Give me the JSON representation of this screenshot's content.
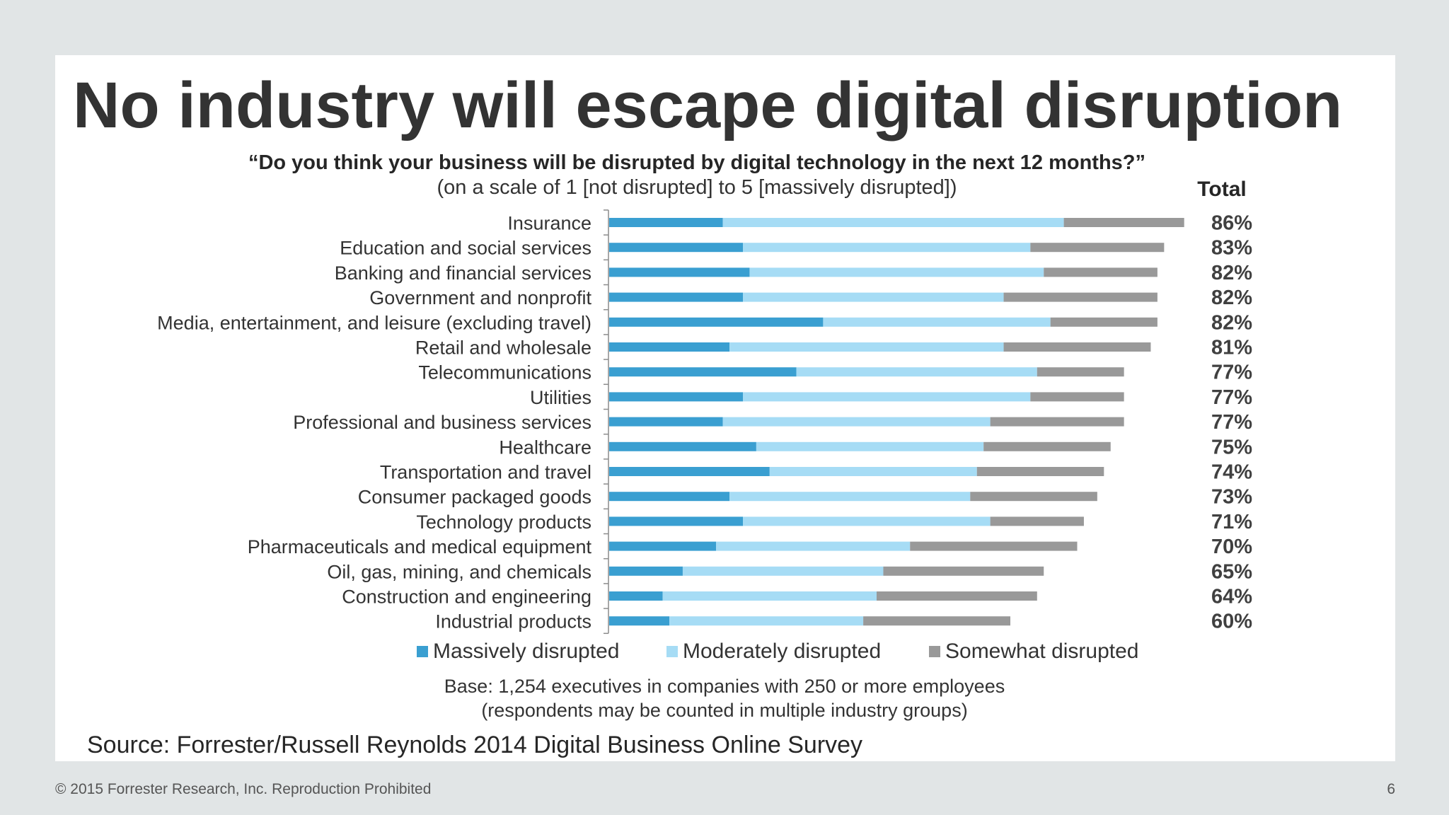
{
  "slide": {
    "title": "No industry will escape digital disruption",
    "question": "“Do you think your business will be disrupted by digital technology in the next 12 months?”",
    "scale_note": "(on a scale of 1 [not disrupted] to 5 [massively disrupted])",
    "base_note": "Base: 1,254 executives in companies with 250 or more employees",
    "base_note2": "(respondents may be counted in multiple industry groups)",
    "source": "Source: Forrester/Russell Reynolds 2014 Digital Business Online Survey",
    "copyright": "© 2015 Forrester Research, Inc. Reproduction Prohibited",
    "page_number": "6"
  },
  "chart_data": {
    "type": "bar",
    "orientation": "horizontal",
    "stacked": true,
    "title": "",
    "total_header": "Total",
    "categories": [
      "Insurance",
      "Education and social services",
      "Banking and financial services",
      "Government and nonprofit",
      "Media, entertainment, and leisure (excluding travel)",
      "Retail and wholesale",
      "Telecommunications",
      "Utilities",
      "Professional and business services",
      "Healthcare",
      "Transportation and travel",
      "Consumer packaged goods",
      "Technology products",
      "Pharmaceuticals and medical equipment",
      "Oil, gas, mining, and chemicals",
      "Construction and engineering",
      "Industrial products"
    ],
    "series": [
      {
        "name": "Massively disrupted",
        "color": "#3a9fd1",
        "values": [
          17,
          20,
          21,
          20,
          32,
          18,
          28,
          20,
          17,
          22,
          24,
          18,
          20,
          16,
          11,
          8,
          9
        ]
      },
      {
        "name": "Moderately disrupted",
        "color": "#a6dcf5",
        "values": [
          51,
          43,
          44,
          39,
          34,
          41,
          36,
          43,
          40,
          34,
          31,
          36,
          37,
          29,
          30,
          32,
          29
        ]
      },
      {
        "name": "Somewhat disrupted",
        "color": "#999999",
        "values": [
          18,
          20,
          17,
          23,
          16,
          22,
          13,
          14,
          20,
          19,
          19,
          19,
          14,
          25,
          24,
          24,
          22
        ]
      }
    ],
    "totals": [
      "86%",
      "83%",
      "82%",
      "82%",
      "82%",
      "81%",
      "77%",
      "77%",
      "77%",
      "75%",
      "74%",
      "73%",
      "71%",
      "70%",
      "65%",
      "64%",
      "60%"
    ],
    "xlim": [
      0,
      86
    ],
    "grid": false,
    "legend_position": "bottom"
  }
}
